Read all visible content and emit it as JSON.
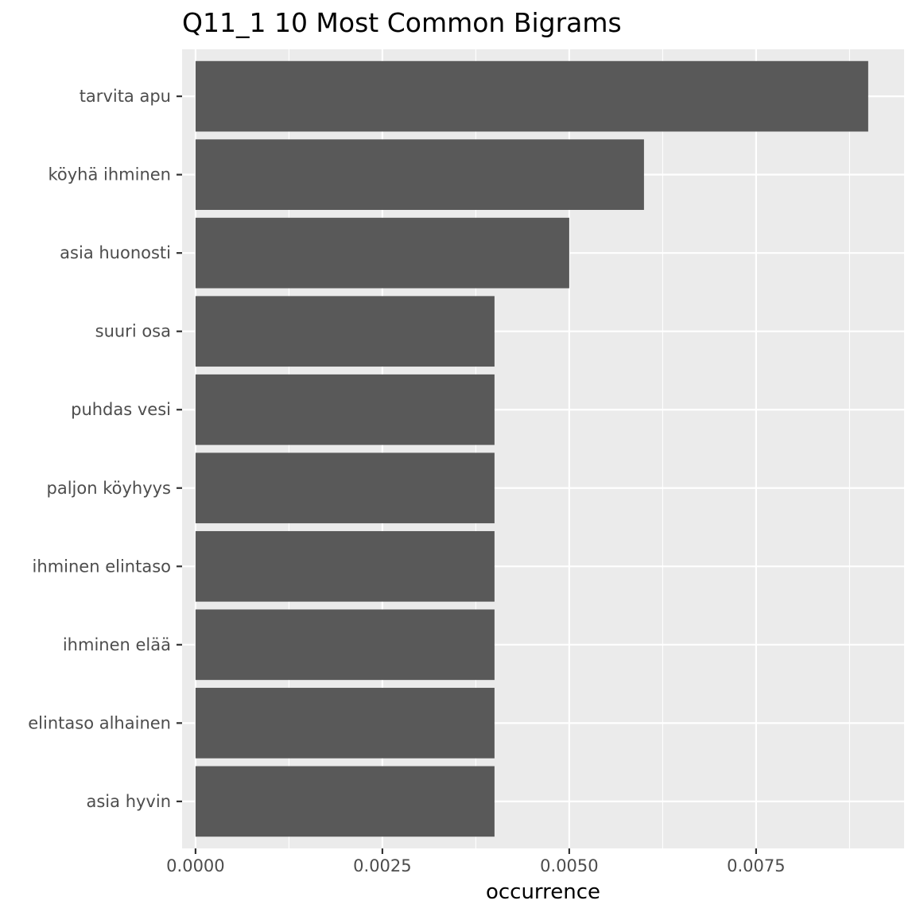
{
  "chart_data": {
    "type": "bar",
    "orientation": "horizontal",
    "title": "Q11_1 10 Most Common Bigrams",
    "xlabel": "occurrence",
    "ylabel": "",
    "xlim": [
      -0.00018,
      0.00948
    ],
    "x_ticks": [
      0.0,
      0.0025,
      0.005,
      0.0075
    ],
    "x_tick_labels": [
      "0.0000",
      "0.0025",
      "0.0050",
      "0.0075"
    ],
    "categories": [
      "tarvita apu",
      "köyhä ihminen",
      "asia huonosti",
      "suuri osa",
      "puhdas vesi",
      "paljon köyhyys",
      "ihminen elintaso",
      "ihminen elää",
      "elintaso alhainen",
      "asia hyvin"
    ],
    "values": [
      0.009,
      0.006,
      0.005,
      0.004,
      0.004,
      0.004,
      0.004,
      0.004,
      0.004,
      0.004
    ],
    "grid": true,
    "legend": "none",
    "colors": {
      "bar": "#595959",
      "panel": "#ebebeb",
      "grid_major": "#ffffff",
      "tick_text": "#4d4d4d",
      "axis_tick": "#333333"
    }
  }
}
